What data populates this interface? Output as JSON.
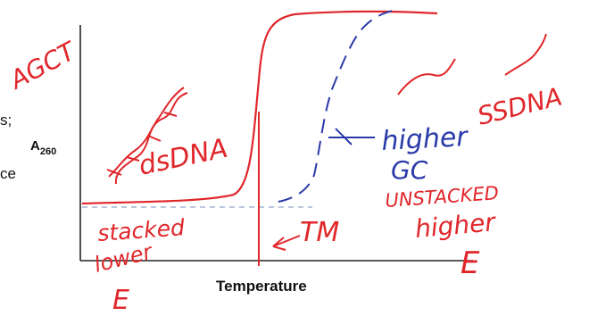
{
  "axes": {
    "y_label_main": "A",
    "y_label_sub": "260",
    "x_label": "Temperature"
  },
  "edge_text": {
    "fragment_1": "s;",
    "fragment_2": "ce"
  },
  "annotations": {
    "agct": "AGCT",
    "dsdna": "dsDNA",
    "ssdna": "SSDNA",
    "stacked": "stacked",
    "lower": "lower",
    "lower_energy": "E",
    "tm": "TM",
    "higher_gc_line1": "higher",
    "higher_gc_line2": "GC",
    "unstacked": "UNSTACKED",
    "higher_energy_line1": "higher",
    "higher_energy_line2": "E"
  },
  "colors": {
    "red_ink": "#e0262b",
    "blue_ink": "#2a3aa8",
    "axis": "#222222",
    "dashed_baseline": "#8fa3c7"
  }
}
